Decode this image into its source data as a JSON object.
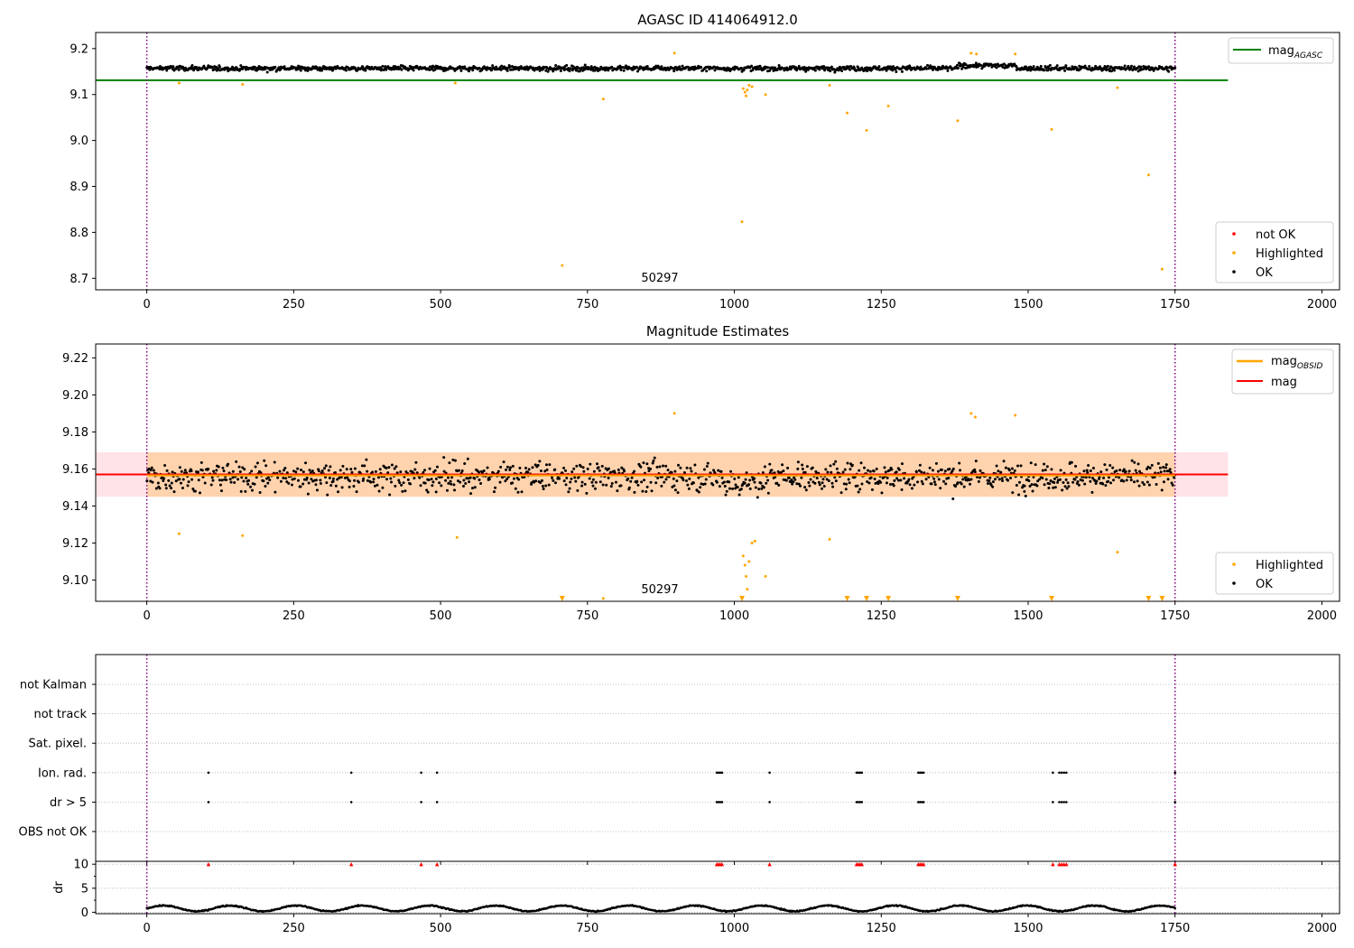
{
  "figure": {
    "obsid_label": "50297"
  },
  "chart_data": [
    {
      "type": "scatter",
      "title": "AGASC ID 414064912.0",
      "xlabel": "",
      "ylabel": "",
      "xlim": [
        -87,
        2030
      ],
      "ylim": [
        8.675,
        9.235
      ],
      "x_ticks": [
        0,
        250,
        500,
        750,
        1000,
        1250,
        1500,
        1750,
        2000
      ],
      "y_ticks": [
        8.7,
        8.8,
        8.9,
        9.0,
        9.1,
        9.2
      ],
      "vlines": [
        0,
        1750
      ],
      "hlines": [
        {
          "name": "mag_AGASC",
          "y": 9.131,
          "x_range": [
            -87,
            1840
          ],
          "color": "#008000"
        }
      ],
      "legend_upper": [
        {
          "label": "mag",
          "sub": "AGASC",
          "color": "#008000",
          "kind": "line"
        }
      ],
      "legend_lower": [
        {
          "label": "not OK",
          "color": "#ff0000",
          "kind": "dot"
        },
        {
          "label": "Highlighted",
          "color": "#ffa500",
          "kind": "dot"
        },
        {
          "label": "OK",
          "color": "#000000",
          "kind": "dot"
        }
      ],
      "series": [
        {
          "name": "OK",
          "color": "#000000",
          "generated": {
            "x_range": [
              0,
              1750
            ],
            "n": 1400,
            "baseline": 9.157,
            "spread": 0.011
          }
        },
        {
          "name": "Highlighted",
          "color": "#ffa500",
          "points": [
            [
              55,
              9.125
            ],
            [
              163,
              9.122
            ],
            [
              525,
              9.125
            ],
            [
              707,
              8.728
            ],
            [
              777,
              9.09
            ],
            [
              898,
              9.19
            ],
            [
              1013,
              8.823
            ],
            [
              1015,
              9.113
            ],
            [
              1018,
              9.105
            ],
            [
              1020,
              9.097
            ],
            [
              1022,
              9.11
            ],
            [
              1025,
              9.12
            ],
            [
              1030,
              9.117
            ],
            [
              1053,
              9.1
            ],
            [
              1162,
              9.12
            ],
            [
              1192,
              9.06
            ],
            [
              1225,
              9.022
            ],
            [
              1262,
              9.075
            ],
            [
              1380,
              9.043
            ],
            [
              1403,
              9.19
            ],
            [
              1412,
              9.188
            ],
            [
              1478,
              9.188
            ],
            [
              1540,
              9.024
            ],
            [
              1652,
              9.115
            ],
            [
              1705,
              8.925
            ],
            [
              1728,
              8.72
            ]
          ]
        }
      ]
    },
    {
      "type": "scatter",
      "title": "Magnitude Estimates",
      "xlabel": "",
      "ylabel": "",
      "xlim": [
        -87,
        2030
      ],
      "ylim": [
        9.0885,
        9.2275
      ],
      "x_ticks": [
        0,
        250,
        500,
        750,
        1000,
        1250,
        1500,
        1750,
        2000
      ],
      "y_ticks": [
        9.1,
        9.12,
        9.14,
        9.16,
        9.18,
        9.2,
        9.22
      ],
      "vlines": [
        0,
        1750
      ],
      "bands": [
        {
          "name": "mag range",
          "y_range": [
            9.145,
            9.169
          ],
          "x_range": [
            -87,
            1840
          ],
          "color": "#ffc0cb"
        },
        {
          "name": "mag_OBSID range",
          "y_range": [
            9.145,
            9.169
          ],
          "x_range": [
            0,
            1750
          ],
          "color": "#ffa500"
        }
      ],
      "hlines": [
        {
          "name": "mag",
          "y": 9.157,
          "x_range": [
            -87,
            1840
          ],
          "color": "#ff0000"
        },
        {
          "name": "mag_OBSID",
          "y": 9.1565,
          "x_range": [
            0,
            1750
          ],
          "color": "#ffa500"
        }
      ],
      "legend_upper": [
        {
          "label": "mag",
          "sub": "OBSID",
          "color": "#ffa500",
          "kind": "line"
        },
        {
          "label": "mag",
          "sub": "",
          "color": "#ff0000",
          "kind": "line"
        }
      ],
      "legend_lower": [
        {
          "label": "Highlighted",
          "color": "#ffa500",
          "kind": "dot"
        },
        {
          "label": "OK",
          "color": "#000000",
          "kind": "dot"
        }
      ],
      "series": [
        {
          "name": "OK",
          "color": "#000000",
          "generated": {
            "x_range": [
              0,
              1750
            ],
            "n": 1200,
            "baseline": 9.156,
            "spread": 0.011
          }
        },
        {
          "name": "Highlighted",
          "color": "#ffa500",
          "points": [
            [
              55,
              9.125
            ],
            [
              163,
              9.124
            ],
            [
              528,
              9.123
            ],
            [
              777,
              9.09
            ],
            [
              898,
              9.19
            ],
            [
              1015,
              9.113
            ],
            [
              1018,
              9.108
            ],
            [
              1020,
              9.102
            ],
            [
              1022,
              9.095
            ],
            [
              1025,
              9.11
            ],
            [
              1030,
              9.12
            ],
            [
              1035,
              9.121
            ],
            [
              1053,
              9.102
            ],
            [
              1162,
              9.122
            ],
            [
              1403,
              9.19
            ],
            [
              1410,
              9.188
            ],
            [
              1478,
              9.189
            ],
            [
              1652,
              9.115
            ]
          ]
        },
        {
          "name": "Highlighted (below range)",
          "color": "#ffa500",
          "marker": "triangle-down",
          "points": [
            [
              707,
              9.0885
            ],
            [
              1013,
              9.0885
            ],
            [
              1192,
              9.0885
            ],
            [
              1225,
              9.0885
            ],
            [
              1262,
              9.0885
            ],
            [
              1380,
              9.0885
            ],
            [
              1540,
              9.0885
            ],
            [
              1705,
              9.0885
            ],
            [
              1728,
              9.0885
            ]
          ]
        }
      ]
    },
    {
      "type": "scatter",
      "title": "",
      "xlabel": "",
      "ylabel": "",
      "xlim": [
        -87,
        2030
      ],
      "x_ticks": [
        0,
        250,
        500,
        750,
        1000,
        1250,
        1500,
        1750,
        2000
      ],
      "vlines": [
        0,
        1750
      ],
      "categories": [
        "not Kalman",
        "not track",
        "Sat. pixel.",
        "Ion. rad.",
        "dr > 5",
        "OBS not OK"
      ],
      "series": [
        {
          "name": "Ion. rad.",
          "color": "#000000",
          "x": [
            105,
            348,
            467,
            494,
            970,
            973,
            976,
            979,
            1060,
            1208,
            1211,
            1214,
            1217,
            1313,
            1316,
            1319,
            1322,
            1542,
            1553,
            1557,
            1561,
            1565,
            1750
          ]
        },
        {
          "name": "dr > 5",
          "color": "#000000",
          "x": [
            105,
            348,
            467,
            494,
            970,
            973,
            976,
            979,
            1060,
            1208,
            1211,
            1214,
            1217,
            1313,
            1316,
            1319,
            1322,
            1542,
            1553,
            1557,
            1561,
            1565,
            1750
          ]
        }
      ]
    },
    {
      "type": "scatter",
      "title": "",
      "xlabel": "",
      "ylabel": "dr",
      "xlim": [
        -87,
        2030
      ],
      "ylim": [
        -0.3,
        10.6
      ],
      "x_ticks": [
        0,
        250,
        500,
        750,
        1000,
        1250,
        1500,
        1750,
        2000
      ],
      "y_ticks": [
        0,
        5,
        10
      ],
      "vlines": [
        0,
        1750
      ],
      "series": [
        {
          "name": "dr",
          "color": "#000000",
          "generated": {
            "x_range": [
              0,
              1750
            ],
            "n": 1200,
            "baseline": 1.0,
            "spread": 0.5
          }
        },
        {
          "name": "dr > 5 (clipped)",
          "color": "#ff0000",
          "marker": "triangle-up",
          "y": 10,
          "x": [
            105,
            348,
            467,
            494,
            970,
            973,
            976,
            979,
            1060,
            1208,
            1211,
            1214,
            1217,
            1313,
            1316,
            1319,
            1322,
            1542,
            1553,
            1557,
            1561,
            1565,
            1750
          ]
        }
      ]
    }
  ]
}
